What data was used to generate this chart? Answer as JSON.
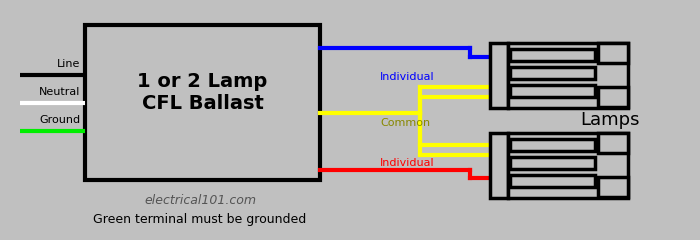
{
  "bg_color": "#c0c0c0",
  "title": "1 or 2 Lamp\nCFL Ballast",
  "title_fontsize": 14,
  "watermark": "electrical101.com",
  "footnote": "Green terminal must be grounded",
  "box_color": "#c0c0c0",
  "box_edge": "#000000",
  "line_labels": [
    "Line",
    "Neutral",
    "Ground"
  ],
  "line_colors": [
    "#000000",
    "#ffffff",
    "#00ee00"
  ],
  "output_labels": [
    "Individual",
    "Common",
    "Individual"
  ],
  "output_colors": [
    "#0000ff",
    "#ffff00",
    "#ff0000"
  ],
  "lamps_label": "Lamps",
  "lamp_fill": "#c0c0c0",
  "lamp_edge": "#000000"
}
